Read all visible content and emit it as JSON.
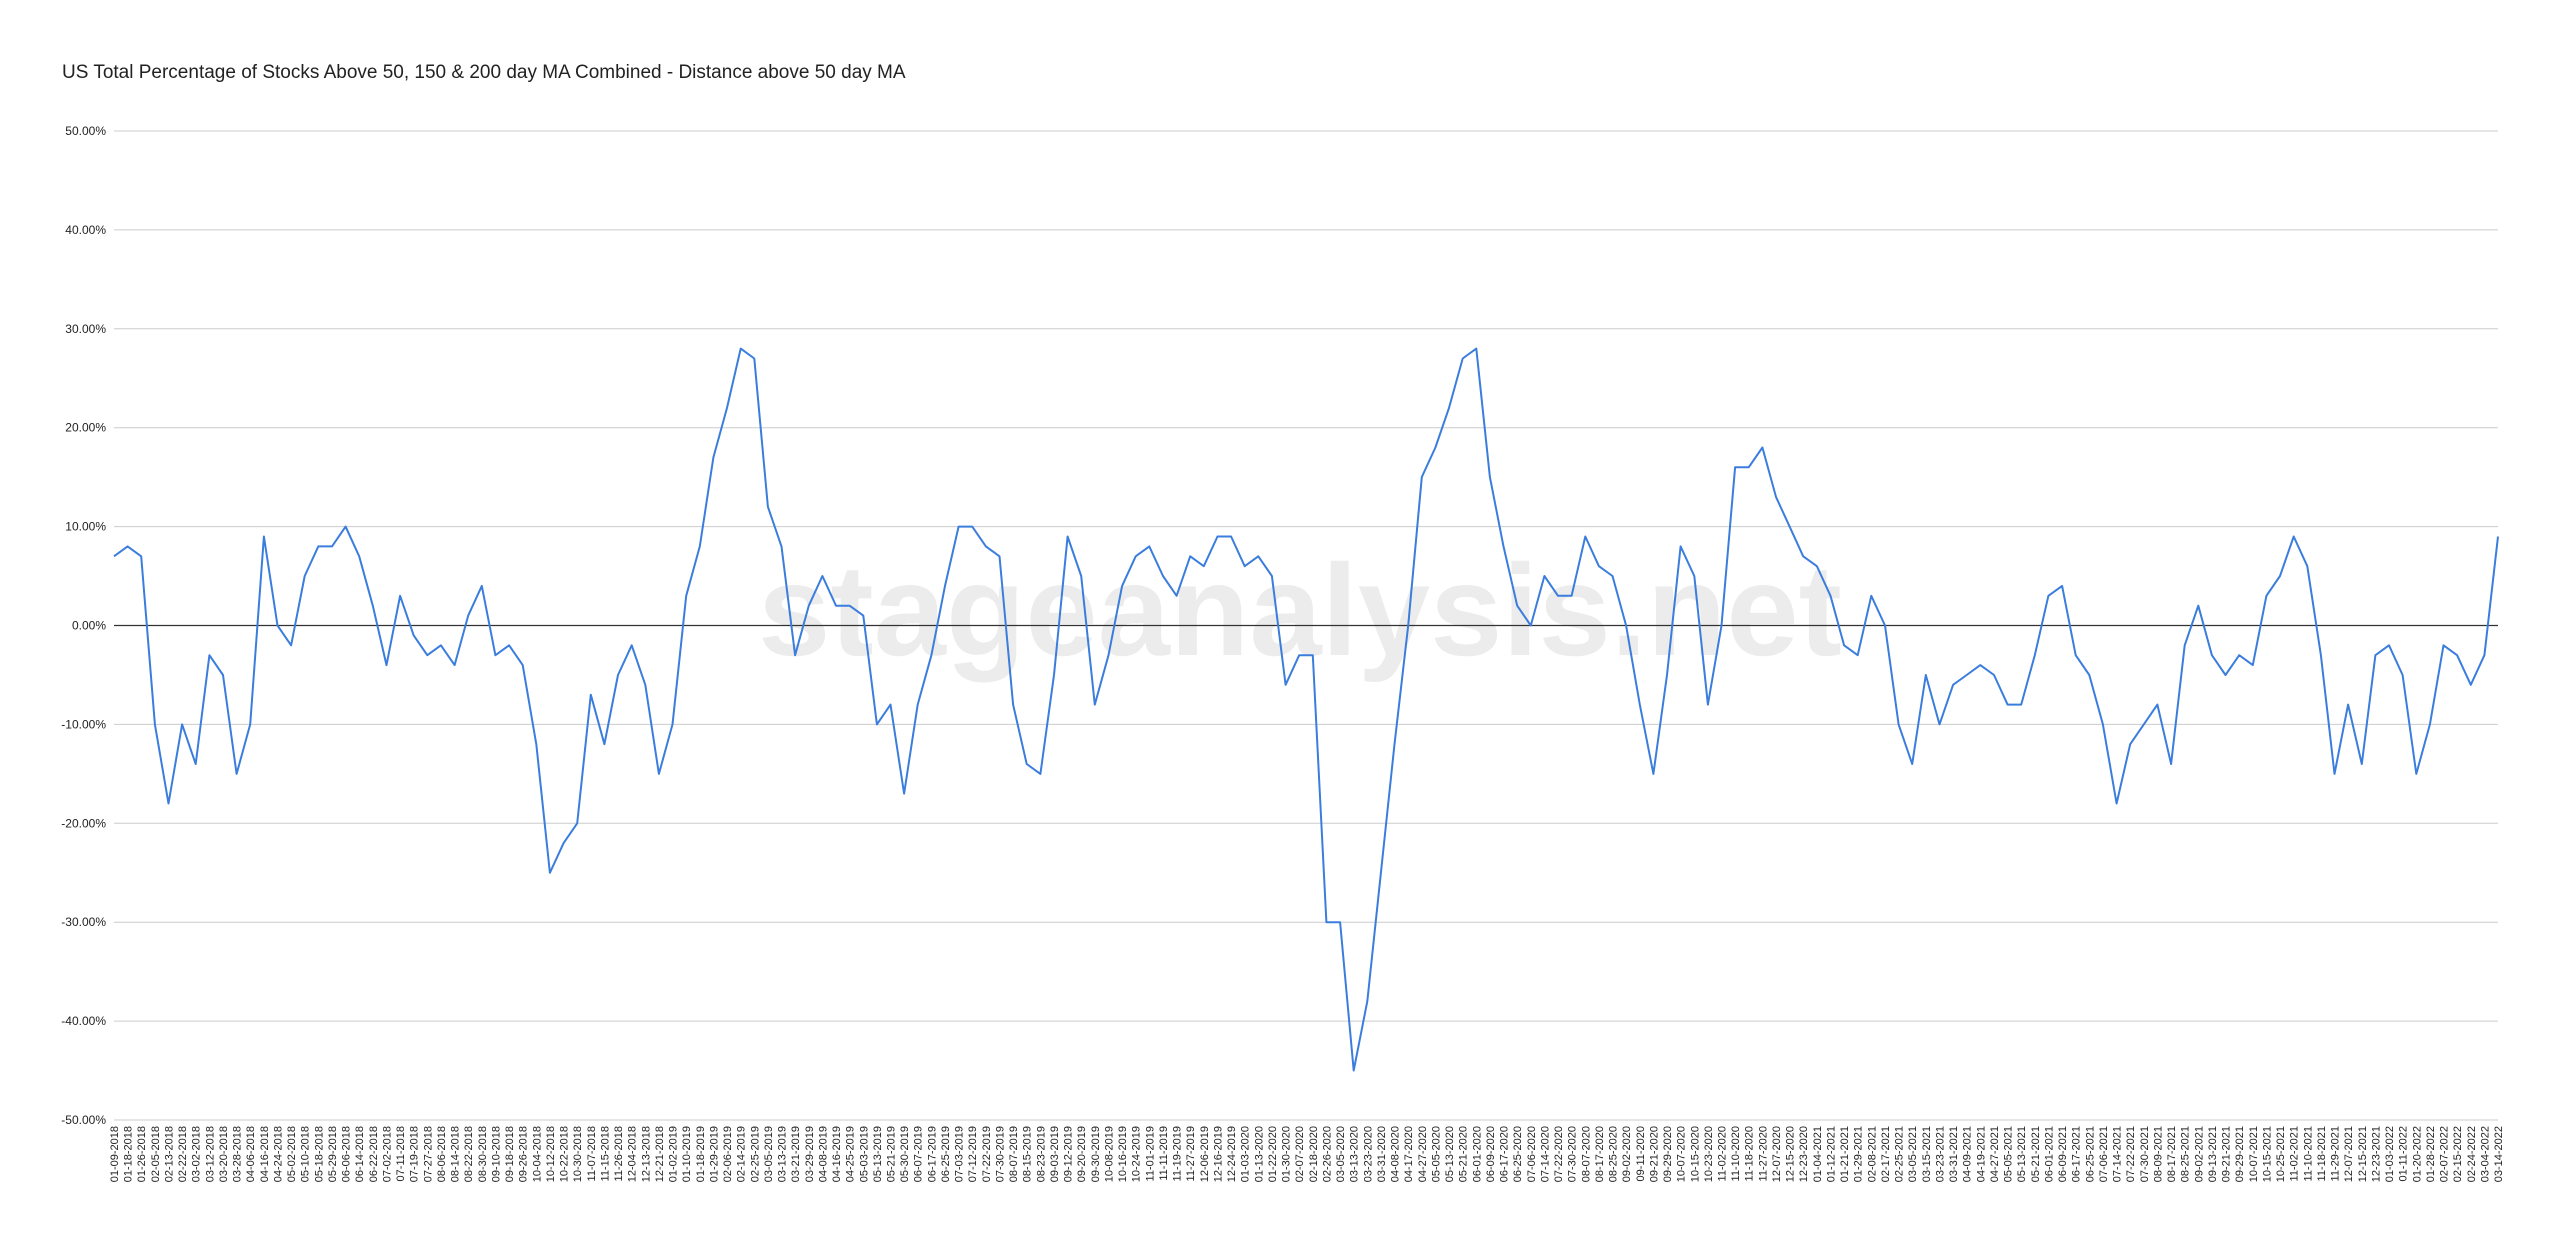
{
  "chart_data": {
    "type": "line",
    "title": "US Total Percentage of Stocks Above 50, 150 & 200 day MA Combined - Distance above 50 day MA",
    "watermark": "stageanalysis.net",
    "categories": [
      "01-09-2018",
      "01-18-2018",
      "01-26-2018",
      "02-05-2018",
      "02-13-2018",
      "02-22-2018",
      "03-02-2018",
      "03-12-2018",
      "03-20-2018",
      "03-28-2018",
      "04-06-2018",
      "04-16-2018",
      "04-24-2018",
      "05-02-2018",
      "05-10-2018",
      "05-18-2018",
      "05-29-2018",
      "06-06-2018",
      "06-14-2018",
      "06-22-2018",
      "07-02-2018",
      "07-11-2018",
      "07-19-2018",
      "07-27-2018",
      "08-06-2018",
      "08-14-2018",
      "08-22-2018",
      "08-30-2018",
      "09-10-2018",
      "09-18-2018",
      "09-26-2018",
      "10-04-2018",
      "10-12-2018",
      "10-22-2018",
      "10-30-2018",
      "11-07-2018",
      "11-15-2018",
      "11-26-2018",
      "12-04-2018",
      "12-13-2018",
      "12-21-2018",
      "01-02-2019",
      "01-10-2019",
      "01-18-2019",
      "01-29-2019",
      "02-06-2019",
      "02-14-2019",
      "02-25-2019",
      "03-05-2019",
      "03-13-2019",
      "03-21-2019",
      "03-29-2019",
      "04-08-2019",
      "04-16-2019",
      "04-25-2019",
      "05-03-2019",
      "05-13-2019",
      "05-21-2019",
      "05-30-2019",
      "06-07-2019",
      "06-17-2019",
      "06-25-2019",
      "07-03-2019",
      "07-12-2019",
      "07-22-2019",
      "07-30-2019",
      "08-07-2019",
      "08-15-2019",
      "08-23-2019",
      "09-03-2019",
      "09-12-2019",
      "09-20-2019",
      "09-30-2019",
      "10-08-2019",
      "10-16-2019",
      "10-24-2019",
      "11-01-2019",
      "11-11-2019",
      "11-19-2019",
      "11-27-2019",
      "12-06-2019",
      "12-16-2019",
      "12-24-2019",
      "01-03-2020",
      "01-13-2020",
      "01-22-2020",
      "01-30-2020",
      "02-07-2020",
      "02-18-2020",
      "02-26-2020",
      "03-05-2020",
      "03-13-2020",
      "03-23-2020",
      "03-31-2020",
      "04-08-2020",
      "04-17-2020",
      "04-27-2020",
      "05-05-2020",
      "05-13-2020",
      "05-21-2020",
      "06-01-2020",
      "06-09-2020",
      "06-17-2020",
      "06-25-2020",
      "07-06-2020",
      "07-14-2020",
      "07-22-2020",
      "07-30-2020",
      "08-07-2020",
      "08-17-2020",
      "08-25-2020",
      "09-02-2020",
      "09-11-2020",
      "09-21-2020",
      "09-29-2020",
      "10-07-2020",
      "10-15-2020",
      "10-23-2020",
      "11-02-2020",
      "11-10-2020",
      "11-18-2020",
      "11-27-2020",
      "12-07-2020",
      "12-15-2020",
      "12-23-2020",
      "01-04-2021",
      "01-12-2021",
      "01-21-2021",
      "01-29-2021",
      "02-08-2021",
      "02-17-2021",
      "02-25-2021",
      "03-05-2021",
      "03-15-2021",
      "03-23-2021",
      "03-31-2021",
      "04-09-2021",
      "04-19-2021",
      "04-27-2021",
      "05-05-2021",
      "05-13-2021",
      "05-21-2021",
      "06-01-2021",
      "06-09-2021",
      "06-17-2021",
      "06-25-2021",
      "07-06-2021",
      "07-14-2021",
      "07-22-2021",
      "07-30-2021",
      "08-09-2021",
      "08-17-2021",
      "08-25-2021",
      "09-02-2021",
      "09-13-2021",
      "09-21-2021",
      "09-29-2021",
      "10-07-2021",
      "10-15-2021",
      "10-25-2021",
      "11-02-2021",
      "11-10-2021",
      "11-18-2021",
      "11-29-2021",
      "12-07-2021",
      "12-15-2021",
      "12-23-2021",
      "01-03-2022",
      "01-11-2022",
      "01-20-2022",
      "01-28-2022",
      "02-07-2022",
      "02-15-2022",
      "02-24-2022",
      "03-04-2022",
      "03-14-2022"
    ],
    "series": [
      {
        "color": "#3b7ddd",
        "values": [
          7,
          8,
          7,
          -10,
          -18,
          -10,
          -14,
          -3,
          -5,
          -15,
          -10,
          9,
          0,
          -2,
          5,
          8,
          8,
          10,
          7,
          2,
          -4,
          3,
          -1,
          -3,
          -2,
          -4,
          1,
          4,
          -3,
          -2,
          -4,
          -12,
          -25,
          -22,
          -20,
          -7,
          -12,
          -5,
          -2,
          -6,
          -15,
          -10,
          3,
          8,
          17,
          22,
          28,
          27,
          12,
          8,
          -3,
          2,
          5,
          2,
          2,
          1,
          -10,
          -8,
          -17,
          -8,
          -3,
          4,
          10,
          10,
          8,
          7,
          -8,
          -14,
          -15,
          -5,
          9,
          5,
          -8,
          -3,
          4,
          7,
          8,
          5,
          3,
          7,
          6,
          9,
          9,
          6,
          7,
          5,
          -6,
          -3,
          -3,
          -30,
          -30,
          -45,
          -38,
          -25,
          -12,
          0,
          15,
          18,
          22,
          27,
          28,
          15,
          8,
          2,
          0,
          5,
          3,
          3,
          9,
          6,
          5,
          0,
          -8,
          -15,
          -5,
          8,
          5,
          -8,
          0,
          16,
          16,
          18,
          13,
          10,
          7,
          6,
          3,
          -2,
          -3,
          3,
          0,
          -10,
          -14,
          -5,
          -10,
          -6,
          -5,
          -4,
          -5,
          -8,
          -8,
          -3,
          3,
          4,
          -3,
          -5,
          -10,
          -18,
          -12,
          -10,
          -8,
          -14,
          -2,
          2,
          -3,
          -5,
          -3,
          -4,
          3,
          5,
          9,
          6,
          -3,
          -15,
          -8,
          -14,
          -3,
          -2,
          -5,
          -15,
          -10,
          -2,
          -3,
          -6,
          -3,
          9
        ]
      }
    ],
    "ylim": [
      -50,
      50
    ],
    "yticks": [
      {
        "value": -50,
        "label": "-50.00%"
      },
      {
        "value": -40,
        "label": "-40.00%"
      },
      {
        "value": -30,
        "label": "-30.00%"
      },
      {
        "value": -20,
        "label": "-20.00%"
      },
      {
        "value": -10,
        "label": "-10.00%"
      },
      {
        "value": 0,
        "label": "0.00%"
      },
      {
        "value": 10,
        "label": "10.00%"
      },
      {
        "value": 20,
        "label": "20.00%"
      },
      {
        "value": 30,
        "label": "30.00%"
      },
      {
        "value": 40,
        "label": "40.00%"
      },
      {
        "value": 50,
        "label": "50.00%"
      }
    ],
    "grid": true
  }
}
